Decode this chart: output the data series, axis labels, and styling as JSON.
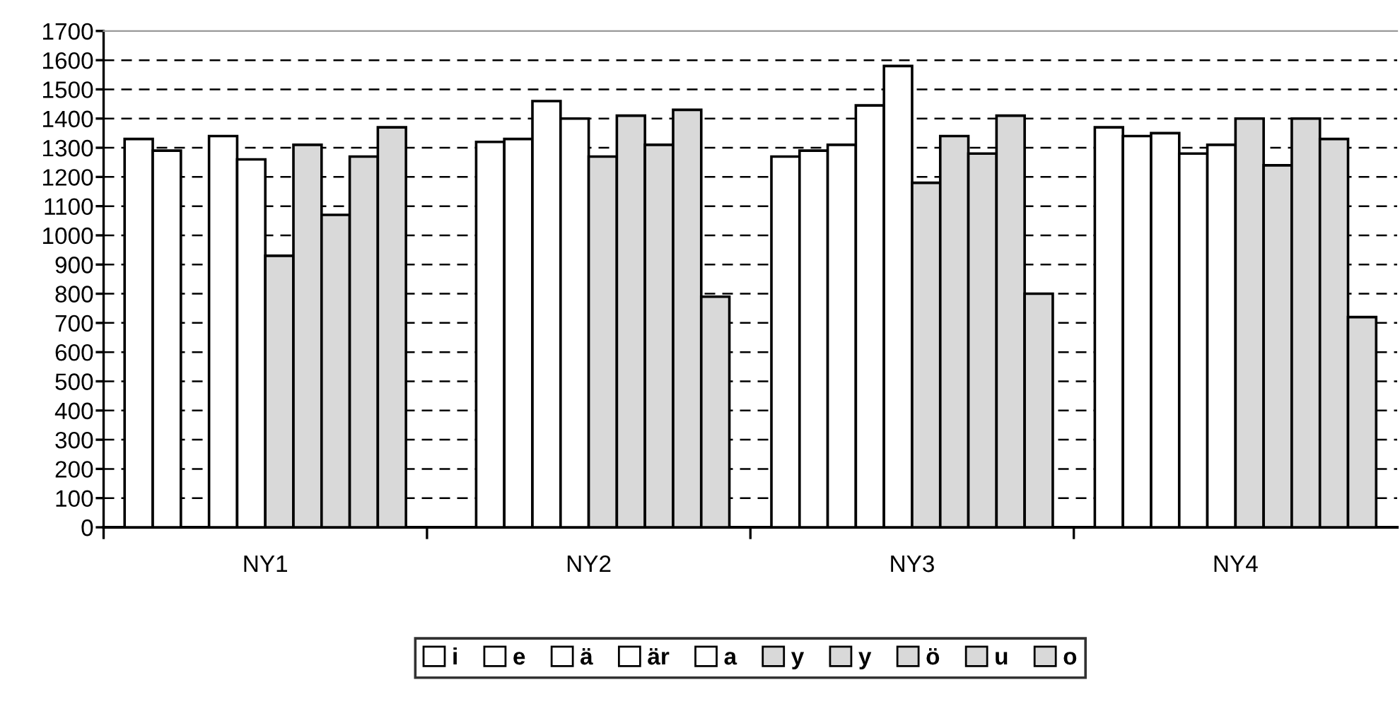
{
  "chart_data": {
    "type": "bar",
    "categories": [
      "NY1",
      "NY2",
      "NY3",
      "NY4"
    ],
    "series": [
      {
        "name": "i",
        "color": "#ffffff",
        "values": [
          1330,
          null,
          1270,
          1370
        ]
      },
      {
        "name": "e",
        "color": "#ffffff",
        "values": [
          1290,
          1320,
          1290,
          1340
        ]
      },
      {
        "name": "ä",
        "color": "#ffffff",
        "values": [
          null,
          1330,
          1310,
          1350
        ]
      },
      {
        "name": "är",
        "color": "#ffffff",
        "values": [
          1340,
          1460,
          1445,
          1280
        ]
      },
      {
        "name": "a",
        "color": "#ffffff",
        "values": [
          1260,
          1400,
          1580,
          1310
        ]
      },
      {
        "name": "y",
        "color": "#d9d9d9",
        "values": [
          930,
          1270,
          1180,
          1400
        ]
      },
      {
        "name": "y",
        "color": "#d9d9d9",
        "values": [
          1310,
          1410,
          1340,
          1240
        ]
      },
      {
        "name": "ö",
        "color": "#d9d9d9",
        "values": [
          1070,
          1310,
          1280,
          1400
        ]
      },
      {
        "name": "u",
        "color": "#d9d9d9",
        "values": [
          1270,
          1430,
          1410,
          1330
        ]
      },
      {
        "name": "o",
        "color": "#d9d9d9",
        "values": [
          1370,
          790,
          800,
          720
        ]
      }
    ],
    "ylim": [
      0,
      1700
    ],
    "yticks": [
      0,
      100,
      200,
      300,
      400,
      500,
      600,
      700,
      800,
      900,
      1000,
      1100,
      1200,
      1300,
      1400,
      1500,
      1600,
      1700
    ],
    "grid": "y",
    "legend": "bottom"
  }
}
